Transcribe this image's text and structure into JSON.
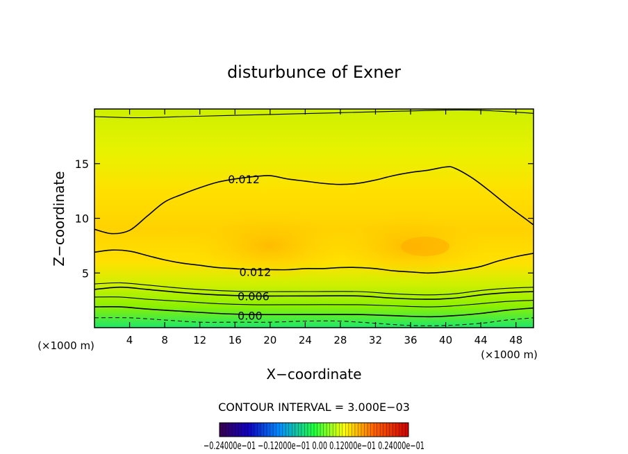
{
  "chart_data": {
    "type": "contour",
    "title": "disturbunce of Exner",
    "xlabel": "X−coordinate",
    "ylabel": "Z−coordinate",
    "xunit_left": "(×1000 m)",
    "xunit_right": "(×1000 m)",
    "xlim": [
      0,
      50
    ],
    "ylim": [
      0,
      20
    ],
    "xticks": [
      4,
      8,
      12,
      16,
      20,
      24,
      28,
      32,
      36,
      40,
      44,
      48
    ],
    "yticks": [
      5,
      10,
      15
    ],
    "contour_interval_text": "CONTOUR INTERVAL = 3.000E−03",
    "colorbar_text": "−0.24000e−01   −0.12000e−01   0.00   0.12000e−01   0.24000e−01",
    "colors": {
      "low": "#1de86a",
      "mid": "#c8f000",
      "high": "#ffd100",
      "peak": "#ffb400"
    },
    "contours": [
      {
        "label": "0.012",
        "level": 0.012,
        "label_x": 15.2,
        "label_z": 13.6,
        "points": [
          [
            0,
            9.0
          ],
          [
            2,
            8.6
          ],
          [
            4,
            8.9
          ],
          [
            6,
            10.2
          ],
          [
            8,
            11.5
          ],
          [
            10,
            12.2
          ],
          [
            12,
            12.8
          ],
          [
            14,
            13.3
          ],
          [
            16,
            13.6
          ],
          [
            18,
            13.8
          ],
          [
            20,
            13.9
          ],
          [
            22,
            13.6
          ],
          [
            24,
            13.4
          ],
          [
            26,
            13.2
          ],
          [
            28,
            13.1
          ],
          [
            30,
            13.2
          ],
          [
            32,
            13.5
          ],
          [
            34,
            13.9
          ],
          [
            36,
            14.2
          ],
          [
            38,
            14.4
          ],
          [
            40,
            14.7
          ],
          [
            41,
            14.6
          ],
          [
            43,
            13.7
          ],
          [
            45,
            12.5
          ],
          [
            47,
            11.2
          ],
          [
            49,
            10.0
          ],
          [
            50,
            9.4
          ]
        ]
      },
      {
        "label": "0.012",
        "level": 0.012,
        "label_x": 16.5,
        "label_z": 5.1,
        "points": [
          [
            0,
            6.9
          ],
          [
            2,
            7.1
          ],
          [
            4,
            7.0
          ],
          [
            6,
            6.6
          ],
          [
            8,
            6.2
          ],
          [
            10,
            5.9
          ],
          [
            12,
            5.7
          ],
          [
            14,
            5.5
          ],
          [
            16,
            5.4
          ],
          [
            18,
            5.3
          ],
          [
            20,
            5.3
          ],
          [
            22,
            5.3
          ],
          [
            24,
            5.4
          ],
          [
            26,
            5.4
          ],
          [
            28,
            5.5
          ],
          [
            30,
            5.5
          ],
          [
            32,
            5.4
          ],
          [
            34,
            5.2
          ],
          [
            36,
            5.1
          ],
          [
            38,
            5.0
          ],
          [
            40,
            5.1
          ],
          [
            42,
            5.3
          ],
          [
            44,
            5.6
          ],
          [
            46,
            6.1
          ],
          [
            48,
            6.5
          ],
          [
            50,
            6.8
          ]
        ]
      },
      {
        "label": "",
        "level": 0.009,
        "points": [
          [
            0,
            4.0
          ],
          [
            3,
            4.1
          ],
          [
            6,
            3.9
          ],
          [
            10,
            3.6
          ],
          [
            14,
            3.4
          ],
          [
            18,
            3.3
          ],
          [
            24,
            3.3
          ],
          [
            30,
            3.3
          ],
          [
            34,
            3.1
          ],
          [
            38,
            3.0
          ],
          [
            41,
            3.1
          ],
          [
            44,
            3.4
          ],
          [
            47,
            3.6
          ],
          [
            50,
            3.7
          ]
        ]
      },
      {
        "label": "0.006",
        "level": 0.006,
        "label_x": 16.3,
        "label_z": 2.9,
        "points": [
          [
            0,
            3.5
          ],
          [
            3,
            3.7
          ],
          [
            6,
            3.5
          ],
          [
            10,
            3.2
          ],
          [
            14,
            3.0
          ],
          [
            18,
            2.9
          ],
          [
            24,
            2.9
          ],
          [
            30,
            2.9
          ],
          [
            34,
            2.7
          ],
          [
            38,
            2.6
          ],
          [
            41,
            2.7
          ],
          [
            44,
            3.0
          ],
          [
            47,
            3.2
          ],
          [
            50,
            3.3
          ]
        ]
      },
      {
        "label": "",
        "level": 0.003,
        "points": [
          [
            0,
            2.8
          ],
          [
            3,
            2.8
          ],
          [
            6,
            2.6
          ],
          [
            10,
            2.4
          ],
          [
            14,
            2.2
          ],
          [
            18,
            2.1
          ],
          [
            24,
            2.1
          ],
          [
            30,
            2.1
          ],
          [
            34,
            2.0
          ],
          [
            38,
            1.9
          ],
          [
            41,
            2.0
          ],
          [
            44,
            2.2
          ],
          [
            47,
            2.4
          ],
          [
            50,
            2.5
          ]
        ]
      },
      {
        "label": "0.00",
        "level": 0.0,
        "label_x": 16.3,
        "label_z": 1.1,
        "points": [
          [
            0,
            1.9
          ],
          [
            3,
            1.9
          ],
          [
            6,
            1.7
          ],
          [
            10,
            1.5
          ],
          [
            14,
            1.3
          ],
          [
            18,
            1.2
          ],
          [
            24,
            1.2
          ],
          [
            30,
            1.2
          ],
          [
            34,
            1.1
          ],
          [
            38,
            1.0
          ],
          [
            41,
            1.1
          ],
          [
            44,
            1.3
          ],
          [
            47,
            1.6
          ],
          [
            50,
            1.8
          ]
        ]
      },
      {
        "label": "",
        "level": 0.012,
        "label_x": 0,
        "label_z": 0,
        "points": [
          [
            0,
            19.3
          ],
          [
            5,
            19.2
          ],
          [
            10,
            19.3
          ],
          [
            15,
            19.4
          ],
          [
            20,
            19.5
          ],
          [
            25,
            19.6
          ],
          [
            30,
            19.7
          ],
          [
            35,
            19.8
          ],
          [
            40,
            19.9
          ],
          [
            43,
            19.9
          ],
          [
            46,
            19.8
          ],
          [
            50,
            19.6
          ]
        ]
      }
    ],
    "dashed_contours": [
      {
        "level": -0.003,
        "points": [
          [
            0,
            0.9
          ],
          [
            4,
            0.9
          ],
          [
            8,
            0.7
          ],
          [
            12,
            0.5
          ],
          [
            16,
            0.5
          ],
          [
            20,
            0.5
          ],
          [
            24,
            0.6
          ],
          [
            28,
            0.6
          ],
          [
            32,
            0.4
          ],
          [
            36,
            0.2
          ],
          [
            40,
            0.2
          ],
          [
            44,
            0.4
          ],
          [
            47,
            0.7
          ],
          [
            50,
            0.9
          ]
        ]
      }
    ]
  }
}
